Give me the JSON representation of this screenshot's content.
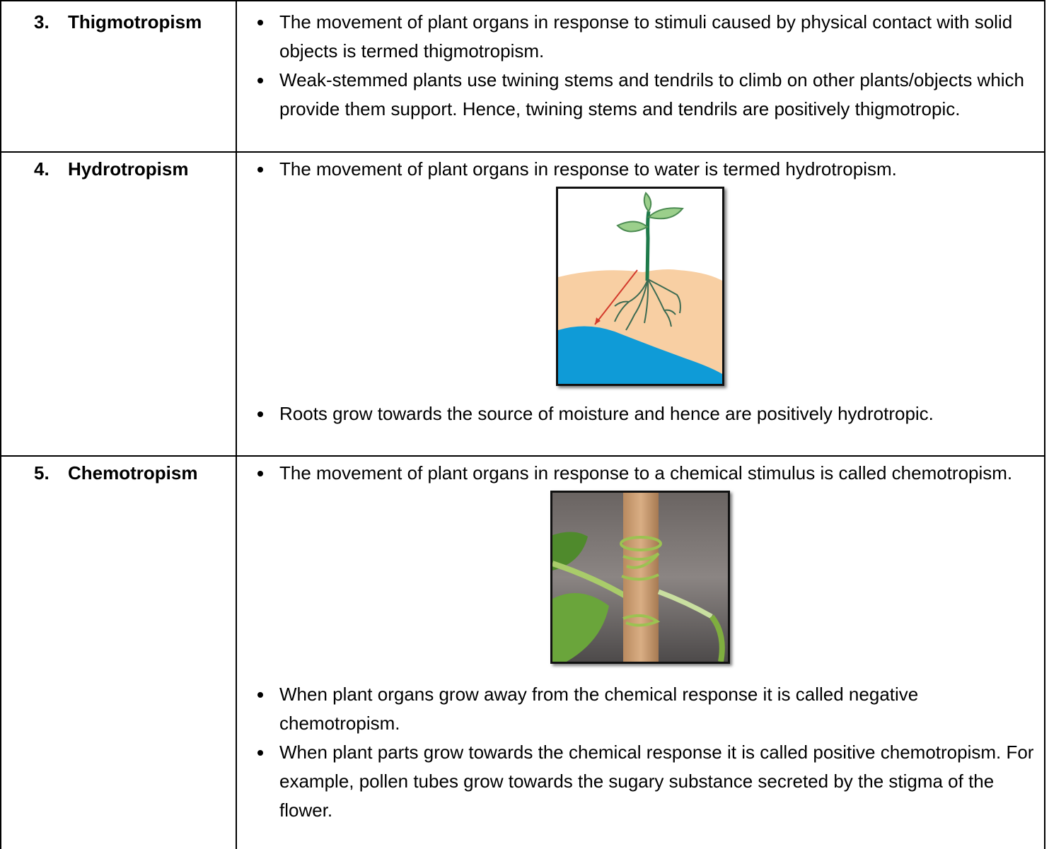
{
  "table": {
    "rows": [
      {
        "number": "3.",
        "term": "Thigmotropism",
        "points": [
          "The movement of plant organs in response to stimuli caused by physical contact with solid objects is termed thigmotropism.",
          "Weak-stemmed plants use twining stems and tendrils to climb on other plants/objects which provide them support. Hence, twining stems and tendrils are positively thigmotropic."
        ]
      },
      {
        "number": "4.",
        "term": "Hydrotropism",
        "points": [
          "The movement of plant organs in response to water is termed hydrotropism."
        ],
        "points_after_image": [
          "Roots grow towards the source of moisture and hence are positively hydrotropic."
        ]
      },
      {
        "number": "5.",
        "term": "Chemotropism",
        "points": [
          "The movement of plant organs in response to a chemical stimulus is called chemotropism."
        ],
        "points_after_image": [
          "When plant organs grow away from the chemical response it is called negative chemotropism.",
          "When plant parts grow towards the chemical response it is called positive chemotropism. For example, pollen tubes grow towards the sugary substance secreted by the stigma of the flower."
        ]
      }
    ]
  }
}
